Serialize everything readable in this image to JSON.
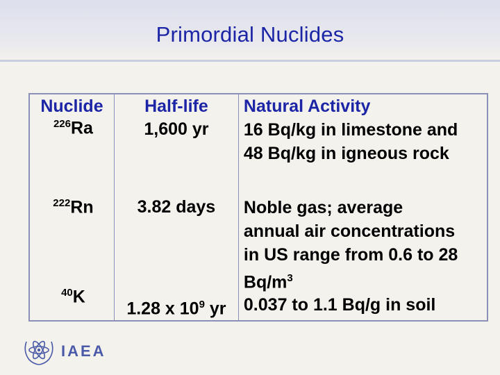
{
  "title": "Primordial Nuclides",
  "table": {
    "headers": [
      "Nuclide",
      "Half-life",
      "Natural Activity"
    ],
    "rows": [
      {
        "mass": "226",
        "element": "Ra",
        "halflife": "1,600 yr",
        "halflife_exp": "",
        "activity_lines": [
          "16 Bq/kg in limestone and",
          "48 Bq/kg in igneous rock"
        ]
      },
      {
        "mass": "222",
        "element": "Rn",
        "halflife": "3.82 days",
        "halflife_exp": "",
        "activity_lines": [
          "Noble gas; average",
          "annual air concentrations",
          "in US range from 0.6 to 28",
          "Bq/m"
        ],
        "activity_last_sup": "3"
      },
      {
        "mass": "40",
        "element": "K",
        "halflife": "1.28 x 10",
        "halflife_exp": "9",
        "halflife_suffix": " yr",
        "activity_lines": [
          "0.037 to 1.1 Bq/g in soil"
        ]
      }
    ]
  },
  "logo": {
    "text": "IAEA",
    "icon": "iaea-atom-wreath-icon",
    "color": "#4a5aa8"
  },
  "colors": {
    "title": "#1b25a6",
    "header": "#1b25a6",
    "grid": "#8a8fb8"
  }
}
